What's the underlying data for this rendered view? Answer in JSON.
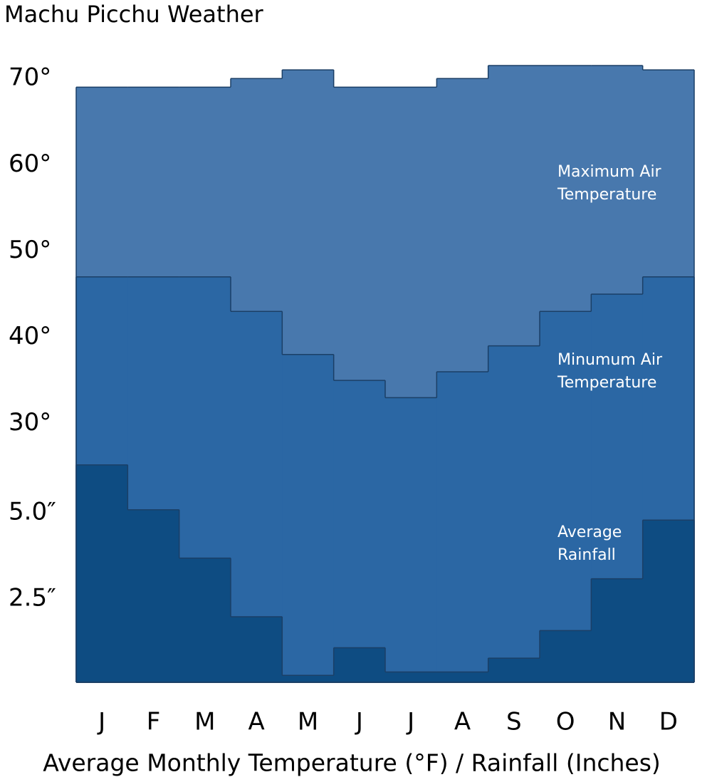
{
  "chart_data": {
    "type": "step-area",
    "title": "Machu Picchu Weather",
    "x_label": "Average Monthly Temperature (°F) / Rainfall (Inches)",
    "categories": [
      "J",
      "F",
      "M",
      "A",
      "M",
      "J",
      "J",
      "A",
      "S",
      "O",
      "N",
      "D"
    ],
    "ylim": [
      0,
      72
    ],
    "yticks": [
      {
        "value": 30,
        "label": "30°"
      },
      {
        "value": 40,
        "label": "40°"
      },
      {
        "value": 50,
        "label": "50°"
      },
      {
        "value": 60,
        "label": "60°"
      },
      {
        "value": 70,
        "label": "70°"
      }
    ],
    "y2lim": [
      0,
      18
    ],
    "y2ticks": [
      {
        "value": 2.5,
        "label": "2.5″"
      },
      {
        "value": 5,
        "label": "5.0″"
      }
    ],
    "series": [
      {
        "name": "Maximum Air Temperature",
        "color": "#4878ad",
        "values": [
          69,
          69,
          69,
          70,
          71,
          69,
          69,
          70,
          71.5,
          71.5,
          71.5,
          71
        ]
      },
      {
        "name": "Minumum Air Temperature",
        "color": "#2b67a4",
        "values": [
          47,
          47,
          47,
          43,
          38,
          35,
          33,
          36,
          39,
          43,
          45,
          47
        ]
      },
      {
        "name": "Average Rainfall",
        "color": "#0e4c82",
        "axis": "y2",
        "values": [
          6.3,
          5.0,
          3.6,
          1.9,
          0.2,
          1.0,
          0.3,
          0.3,
          0.7,
          1.5,
          3.0,
          4.7
        ]
      }
    ]
  }
}
